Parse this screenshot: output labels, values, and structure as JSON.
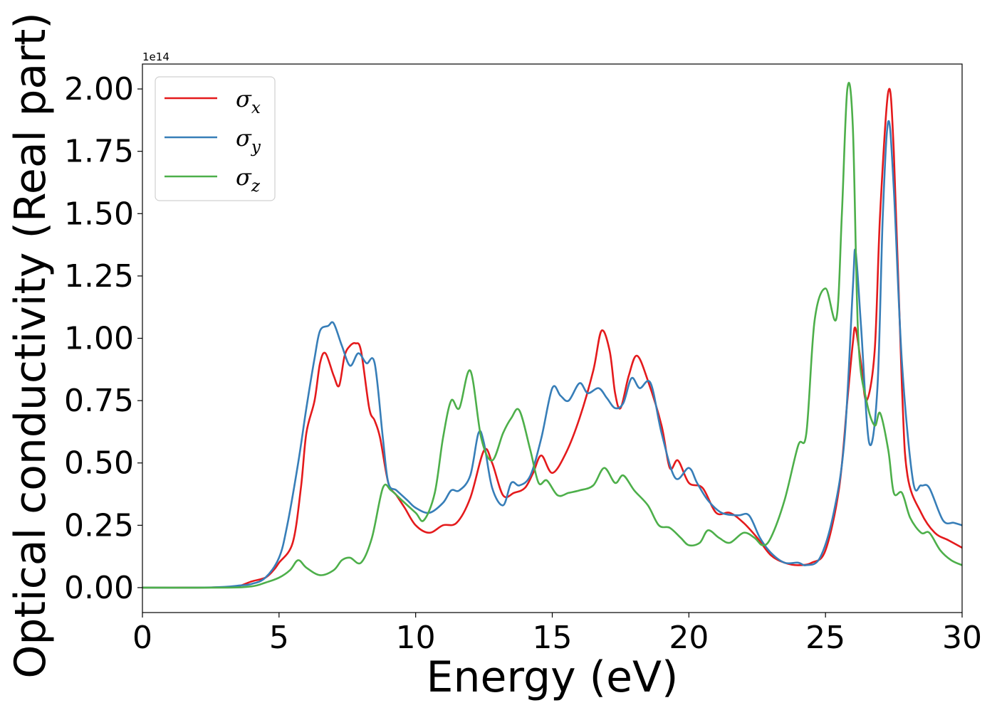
{
  "chart_data": {
    "type": "line",
    "xlabel": "Energy (eV)",
    "ylabel": "Optical conductivity (Real part)",
    "y_offset_label": "1e14",
    "xlim": [
      0,
      30
    ],
    "ylim": [
      -0.1,
      2.1
    ],
    "x_ticks": [
      0,
      5,
      10,
      15,
      20,
      25,
      30
    ],
    "x_tick_labels": [
      "0",
      "5",
      "10",
      "15",
      "20",
      "25",
      "30"
    ],
    "y_ticks": [
      0,
      0.25,
      0.5,
      0.75,
      1.0,
      1.25,
      1.5,
      1.75,
      2.0
    ],
    "y_tick_labels": [
      "0.00",
      "0.25",
      "0.50",
      "0.75",
      "1.00",
      "1.25",
      "1.50",
      "1.75",
      "2.00"
    ],
    "grid": false,
    "legend_position": "top-left",
    "series": [
      {
        "name": "σ",
        "subscript": "x",
        "color": "#e41a1c",
        "points": [
          [
            0,
            0
          ],
          [
            2,
            0
          ],
          [
            3,
            0.002
          ],
          [
            3.5,
            0.005
          ],
          [
            4,
            0.025
          ],
          [
            4.5,
            0.04
          ],
          [
            4.8,
            0.07
          ],
          [
            5,
            0.1
          ],
          [
            5.5,
            0.18
          ],
          [
            5.8,
            0.4
          ],
          [
            6,
            0.62
          ],
          [
            6.3,
            0.75
          ],
          [
            6.5,
            0.9
          ],
          [
            6.7,
            0.94
          ],
          [
            7,
            0.85
          ],
          [
            7.2,
            0.81
          ],
          [
            7.4,
            0.93
          ],
          [
            7.6,
            0.97
          ],
          [
            7.8,
            0.98
          ],
          [
            8,
            0.95
          ],
          [
            8.3,
            0.72
          ],
          [
            8.5,
            0.67
          ],
          [
            8.7,
            0.6
          ],
          [
            9,
            0.42
          ],
          [
            9.3,
            0.37
          ],
          [
            9.6,
            0.32
          ],
          [
            10,
            0.25
          ],
          [
            10.5,
            0.22
          ],
          [
            11,
            0.25
          ],
          [
            11.5,
            0.26
          ],
          [
            12,
            0.36
          ],
          [
            12.5,
            0.55
          ],
          [
            12.8,
            0.5
          ],
          [
            13.2,
            0.37
          ],
          [
            13.6,
            0.38
          ],
          [
            14,
            0.4
          ],
          [
            14.3,
            0.46
          ],
          [
            14.6,
            0.53
          ],
          [
            15,
            0.46
          ],
          [
            15.5,
            0.54
          ],
          [
            16,
            0.68
          ],
          [
            16.5,
            0.87
          ],
          [
            16.8,
            1.03
          ],
          [
            17.1,
            0.95
          ],
          [
            17.3,
            0.78
          ],
          [
            17.5,
            0.72
          ],
          [
            17.8,
            0.85
          ],
          [
            18.1,
            0.93
          ],
          [
            18.5,
            0.83
          ],
          [
            19,
            0.65
          ],
          [
            19.3,
            0.48
          ],
          [
            19.6,
            0.51
          ],
          [
            20,
            0.42
          ],
          [
            20.5,
            0.4
          ],
          [
            21,
            0.3
          ],
          [
            21.5,
            0.3
          ],
          [
            22,
            0.26
          ],
          [
            22.5,
            0.2
          ],
          [
            23,
            0.13
          ],
          [
            23.5,
            0.1
          ],
          [
            24,
            0.09
          ],
          [
            24.5,
            0.1
          ],
          [
            25,
            0.15
          ],
          [
            25.5,
            0.4
          ],
          [
            25.8,
            0.75
          ],
          [
            26,
            0.98
          ],
          [
            26.1,
            1.04
          ],
          [
            26.3,
            0.9
          ],
          [
            26.5,
            0.75
          ],
          [
            26.8,
            0.95
          ],
          [
            27,
            1.5
          ],
          [
            27.3,
            1.99
          ],
          [
            27.5,
            1.75
          ],
          [
            27.8,
            0.8
          ],
          [
            28,
            0.45
          ],
          [
            28.5,
            0.3
          ],
          [
            29,
            0.22
          ],
          [
            29.5,
            0.19
          ],
          [
            30,
            0.16
          ]
        ]
      },
      {
        "name": "σ",
        "subscript": "y",
        "color": "#377eb8",
        "points": [
          [
            0,
            0
          ],
          [
            2,
            0
          ],
          [
            3,
            0.003
          ],
          [
            3.5,
            0.008
          ],
          [
            4,
            0.015
          ],
          [
            4.5,
            0.04
          ],
          [
            5,
            0.12
          ],
          [
            5.3,
            0.25
          ],
          [
            5.7,
            0.5
          ],
          [
            6,
            0.72
          ],
          [
            6.3,
            0.92
          ],
          [
            6.5,
            1.03
          ],
          [
            6.8,
            1.05
          ],
          [
            7,
            1.06
          ],
          [
            7.3,
            0.97
          ],
          [
            7.6,
            0.89
          ],
          [
            7.9,
            0.94
          ],
          [
            8.2,
            0.9
          ],
          [
            8.5,
            0.9
          ],
          [
            8.8,
            0.6
          ],
          [
            9,
            0.42
          ],
          [
            9.3,
            0.39
          ],
          [
            9.7,
            0.35
          ],
          [
            10,
            0.32
          ],
          [
            10.5,
            0.3
          ],
          [
            11,
            0.34
          ],
          [
            11.3,
            0.39
          ],
          [
            11.6,
            0.39
          ],
          [
            12,
            0.45
          ],
          [
            12.3,
            0.62
          ],
          [
            12.5,
            0.58
          ],
          [
            12.8,
            0.4
          ],
          [
            13.2,
            0.33
          ],
          [
            13.5,
            0.42
          ],
          [
            13.8,
            0.41
          ],
          [
            14.2,
            0.45
          ],
          [
            14.6,
            0.6
          ],
          [
            15,
            0.8
          ],
          [
            15.3,
            0.77
          ],
          [
            15.6,
            0.75
          ],
          [
            16,
            0.82
          ],
          [
            16.3,
            0.78
          ],
          [
            16.7,
            0.8
          ],
          [
            17,
            0.76
          ],
          [
            17.3,
            0.72
          ],
          [
            17.6,
            0.74
          ],
          [
            17.9,
            0.84
          ],
          [
            18.2,
            0.8
          ],
          [
            18.6,
            0.82
          ],
          [
            19,
            0.62
          ],
          [
            19.5,
            0.44
          ],
          [
            20,
            0.48
          ],
          [
            20.3,
            0.42
          ],
          [
            20.7,
            0.35
          ],
          [
            21.2,
            0.3
          ],
          [
            21.8,
            0.29
          ],
          [
            22.2,
            0.29
          ],
          [
            22.6,
            0.2
          ],
          [
            23,
            0.14
          ],
          [
            23.5,
            0.1
          ],
          [
            24,
            0.1
          ],
          [
            24.3,
            0.09
          ],
          [
            24.8,
            0.12
          ],
          [
            25.3,
            0.3
          ],
          [
            25.7,
            0.6
          ],
          [
            26,
            1.2
          ],
          [
            26.1,
            1.35
          ],
          [
            26.3,
            1.05
          ],
          [
            26.6,
            0.58
          ],
          [
            26.9,
            0.8
          ],
          [
            27.1,
            1.5
          ],
          [
            27.3,
            1.87
          ],
          [
            27.5,
            1.6
          ],
          [
            27.8,
            0.9
          ],
          [
            28.2,
            0.43
          ],
          [
            28.5,
            0.41
          ],
          [
            28.8,
            0.4
          ],
          [
            29.3,
            0.27
          ],
          [
            29.7,
            0.26
          ],
          [
            30,
            0.25
          ]
        ]
      },
      {
        "name": "σ",
        "subscript": "z",
        "color": "#4daf4a",
        "points": [
          [
            0,
            0
          ],
          [
            3,
            0
          ],
          [
            4,
            0.005
          ],
          [
            4.5,
            0.02
          ],
          [
            5,
            0.04
          ],
          [
            5.4,
            0.07
          ],
          [
            5.7,
            0.11
          ],
          [
            6,
            0.08
          ],
          [
            6.5,
            0.05
          ],
          [
            7,
            0.07
          ],
          [
            7.3,
            0.11
          ],
          [
            7.6,
            0.12
          ],
          [
            8,
            0.1
          ],
          [
            8.4,
            0.2
          ],
          [
            8.8,
            0.4
          ],
          [
            9.1,
            0.39
          ],
          [
            9.5,
            0.35
          ],
          [
            10,
            0.3
          ],
          [
            10.3,
            0.27
          ],
          [
            10.7,
            0.38
          ],
          [
            11,
            0.6
          ],
          [
            11.3,
            0.75
          ],
          [
            11.6,
            0.72
          ],
          [
            12,
            0.87
          ],
          [
            12.4,
            0.6
          ],
          [
            12.8,
            0.51
          ],
          [
            13.2,
            0.62
          ],
          [
            13.5,
            0.68
          ],
          [
            13.8,
            0.71
          ],
          [
            14.2,
            0.55
          ],
          [
            14.5,
            0.42
          ],
          [
            14.8,
            0.43
          ],
          [
            15.2,
            0.37
          ],
          [
            15.6,
            0.38
          ],
          [
            16,
            0.39
          ],
          [
            16.5,
            0.41
          ],
          [
            16.9,
            0.48
          ],
          [
            17.3,
            0.42
          ],
          [
            17.6,
            0.45
          ],
          [
            18,
            0.39
          ],
          [
            18.5,
            0.33
          ],
          [
            18.9,
            0.25
          ],
          [
            19.3,
            0.24
          ],
          [
            19.7,
            0.2
          ],
          [
            20,
            0.17
          ],
          [
            20.4,
            0.18
          ],
          [
            20.7,
            0.23
          ],
          [
            21.1,
            0.2
          ],
          [
            21.5,
            0.18
          ],
          [
            22,
            0.22
          ],
          [
            22.4,
            0.2
          ],
          [
            22.7,
            0.17
          ],
          [
            23,
            0.2
          ],
          [
            23.5,
            0.35
          ],
          [
            24,
            0.57
          ],
          [
            24.3,
            0.62
          ],
          [
            24.6,
            1.07
          ],
          [
            25,
            1.2
          ],
          [
            25.4,
            1.08
          ],
          [
            25.6,
            1.5
          ],
          [
            25.8,
            2.0
          ],
          [
            26,
            1.85
          ],
          [
            26.2,
            1.0
          ],
          [
            26.5,
            0.75
          ],
          [
            26.8,
            0.65
          ],
          [
            27,
            0.7
          ],
          [
            27.3,
            0.55
          ],
          [
            27.5,
            0.38
          ],
          [
            27.8,
            0.38
          ],
          [
            28.1,
            0.28
          ],
          [
            28.5,
            0.22
          ],
          [
            28.8,
            0.22
          ],
          [
            29.2,
            0.15
          ],
          [
            29.6,
            0.11
          ],
          [
            30,
            0.09
          ]
        ]
      }
    ]
  }
}
